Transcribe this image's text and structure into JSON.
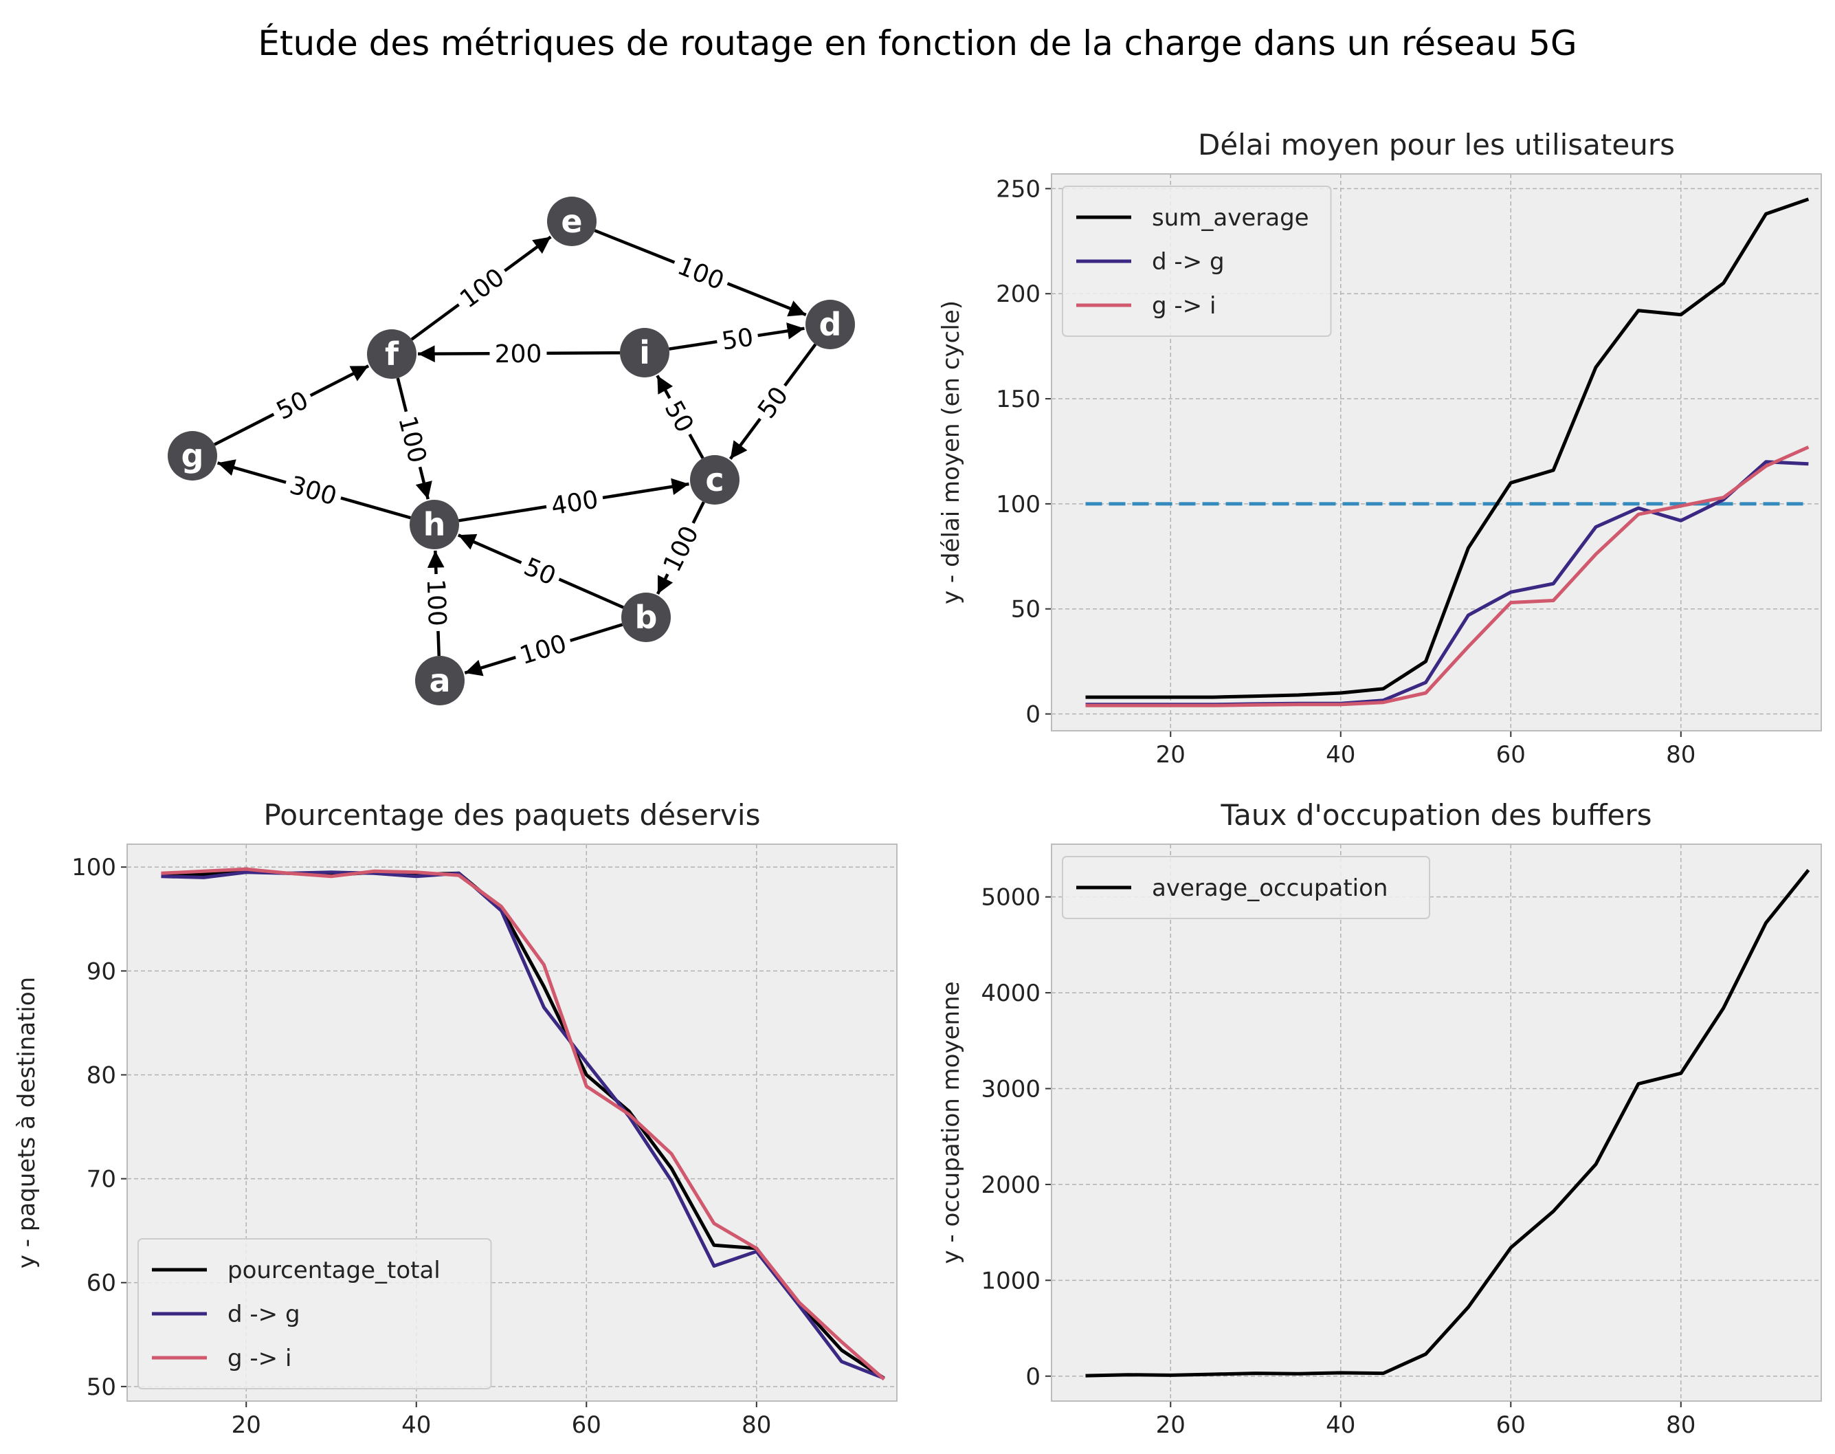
{
  "figure": {
    "title": "Étude des métriques de routage en fonction de la charge dans un réseau 5G"
  },
  "colors": {
    "axes_bg": "#eeeeee",
    "grid": "#b2b2b2",
    "black": "#000000",
    "purple": "#3b2883",
    "pink": "#d0596e",
    "blue_dashed": "#348abd",
    "node": "#4a4a4f"
  },
  "graph": {
    "nodes": [
      "a",
      "b",
      "c",
      "d",
      "e",
      "f",
      "g",
      "h",
      "i"
    ],
    "edges": [
      {
        "from": "f",
        "to": "e",
        "weight": "100"
      },
      {
        "from": "e",
        "to": "d",
        "weight": "100"
      },
      {
        "from": "i",
        "to": "f",
        "weight": "200"
      },
      {
        "from": "i",
        "to": "d",
        "weight": "50"
      },
      {
        "from": "g",
        "to": "f",
        "weight": "50"
      },
      {
        "from": "f",
        "to": "h",
        "weight": "100"
      },
      {
        "from": "c",
        "to": "i",
        "weight": "50"
      },
      {
        "from": "d",
        "to": "c",
        "weight": "50"
      },
      {
        "from": "h",
        "to": "g",
        "weight": "300"
      },
      {
        "from": "h",
        "to": "c",
        "weight": "400"
      },
      {
        "from": "c",
        "to": "b",
        "weight": "100"
      },
      {
        "from": "b",
        "to": "h",
        "weight": "50"
      },
      {
        "from": "a",
        "to": "h",
        "weight": "100"
      },
      {
        "from": "b",
        "to": "a",
        "weight": "100"
      }
    ]
  },
  "chart_data": [
    {
      "type": "line",
      "title": "Délai moyen pour les utilisateurs",
      "xlabel": "",
      "ylabel": "y - délai moyen (en cycle)",
      "xlim": [
        6,
        96.5
      ],
      "ylim": [
        -8,
        257
      ],
      "xticks": [
        20,
        40,
        60,
        80
      ],
      "yticks": [
        0,
        50,
        100,
        150,
        200,
        250
      ],
      "grid": true,
      "legend": "top-left",
      "x": [
        10,
        15,
        20,
        25,
        30,
        35,
        40,
        45,
        50,
        55,
        60,
        65,
        70,
        75,
        80,
        85,
        90,
        95
      ],
      "series": [
        {
          "name": "sum_average",
          "color": "#000000",
          "values": [
            8,
            8,
            8,
            8,
            8.5,
            9,
            10,
            12,
            25,
            79,
            110,
            116,
            165,
            192,
            190,
            205,
            238,
            245
          ]
        },
        {
          "name": "d -> g",
          "color": "#3b2883",
          "values": [
            4.5,
            4.5,
            4.5,
            4.5,
            4.8,
            5,
            5,
            6.5,
            15,
            47,
            58,
            62,
            89,
            98,
            92,
            102,
            120,
            119
          ]
        },
        {
          "name": "g -> i",
          "color": "#d0596e",
          "values": [
            4,
            4,
            4,
            4,
            4.3,
            4.5,
            4.5,
            5.5,
            10,
            32,
            53,
            54,
            76,
            95,
            99,
            103,
            118,
            127
          ]
        }
      ],
      "hlines": [
        {
          "y": 100,
          "x": [
            10,
            95
          ],
          "color": "#348abd",
          "style": "dashed"
        }
      ]
    },
    {
      "type": "line",
      "title": "Pourcentage des paquets déservis",
      "xlabel": "",
      "ylabel": "y - paquets à destination",
      "xlim": [
        6,
        96.5
      ],
      "ylim": [
        48.6,
        102.2
      ],
      "xticks": [
        20,
        40,
        60,
        80
      ],
      "yticks": [
        50,
        60,
        70,
        80,
        90,
        100
      ],
      "grid": true,
      "legend": "bottom-left",
      "x": [
        10,
        15,
        20,
        25,
        30,
        35,
        40,
        45,
        50,
        55,
        60,
        65,
        70,
        75,
        80,
        85,
        90,
        95
      ],
      "series": [
        {
          "name": "pourcentage_total",
          "color": "#000000",
          "values": [
            99.2,
            99.3,
            99.6,
            99.4,
            99.2,
            99.5,
            99.3,
            99.4,
            96,
            88.5,
            80,
            76.5,
            71,
            63.6,
            63.3,
            58,
            53.5,
            50.8
          ]
        },
        {
          "name": "d -> g",
          "color": "#3b2883",
          "values": [
            99.1,
            99.0,
            99.5,
            99.4,
            99.5,
            99.4,
            99.1,
            99.4,
            95.8,
            86.5,
            81.2,
            76.0,
            69.8,
            61.6,
            63.0,
            57.8,
            52.4,
            50.8
          ]
        },
        {
          "name": "g -> i",
          "color": "#d0596e",
          "values": [
            99.4,
            99.6,
            99.8,
            99.4,
            99.1,
            99.6,
            99.5,
            99.2,
            96.2,
            90.6,
            78.9,
            76.2,
            72.4,
            65.7,
            63.3,
            58.1,
            54.3,
            50.7
          ]
        }
      ]
    },
    {
      "type": "line",
      "title": "Taux d'occupation des buffers",
      "xlabel": "",
      "ylabel": "y - occupation moyenne",
      "xlim": [
        6,
        96.5
      ],
      "ylim": [
        -260,
        5550
      ],
      "xticks": [
        20,
        40,
        60,
        80
      ],
      "yticks": [
        0,
        1000,
        2000,
        3000,
        4000,
        5000
      ],
      "grid": true,
      "legend": "top-left",
      "x": [
        10,
        15,
        20,
        25,
        30,
        35,
        40,
        45,
        50,
        55,
        60,
        65,
        70,
        75,
        80,
        85,
        90,
        95
      ],
      "series": [
        {
          "name": "average_occupation",
          "color": "#000000",
          "values": [
            5,
            15,
            10,
            20,
            30,
            25,
            35,
            30,
            230,
            720,
            1340,
            1720,
            2210,
            3050,
            3160,
            3840,
            4730,
            5280
          ]
        }
      ]
    }
  ]
}
